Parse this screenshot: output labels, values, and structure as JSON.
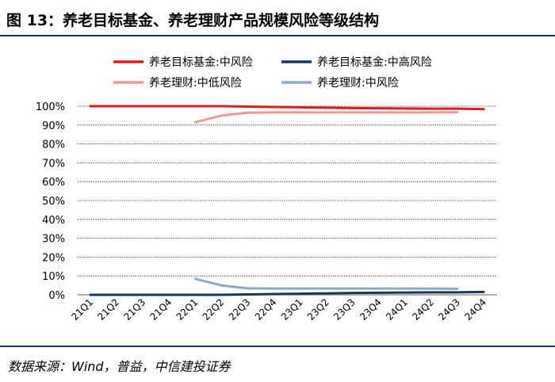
{
  "header": {
    "title": "图 13：养老目标基金、养老理财产品规模风险等级结构"
  },
  "footer": {
    "source": "数据来源：Wind，普益，中信建投证券"
  },
  "colors": {
    "title_rule": "#17375e",
    "grid": "#000000",
    "axis": "#808080"
  },
  "chart_data": {
    "type": "line",
    "title": "",
    "xlabel": "",
    "ylabel": "",
    "ylim": [
      0,
      100
    ],
    "grid": true,
    "legend_position": "top",
    "categories": [
      "21Q1",
      "21Q2",
      "21Q3",
      "21Q4",
      "22Q1",
      "22Q2",
      "22Q3",
      "22Q4",
      "23Q1",
      "23Q2",
      "23Q3",
      "23Q4",
      "24Q1",
      "24Q2",
      "24Q3",
      "24Q4"
    ],
    "y_ticks": [
      "0%",
      "10%",
      "20%",
      "30%",
      "40%",
      "50%",
      "60%",
      "70%",
      "80%",
      "90%",
      "100%"
    ],
    "series": [
      {
        "name": "养老目标基金:中风险",
        "color": "#e31a1c",
        "values": [
          100,
          100,
          100,
          100,
          100,
          100,
          99.8,
          99.6,
          99.4,
          99.2,
          99.0,
          98.9,
          98.8,
          98.7,
          98.7,
          98.5
        ]
      },
      {
        "name": "养老目标基金:中高风险",
        "color": "#17375e",
        "values": [
          0,
          0,
          0,
          0,
          0,
          0,
          0.2,
          0.4,
          0.6,
          0.8,
          1.0,
          1.1,
          1.2,
          1.3,
          1.3,
          1.5
        ]
      },
      {
        "name": "养老理财:中低风险",
        "color": "#f4959a",
        "values": [
          null,
          null,
          null,
          null,
          91.5,
          95.0,
          96.6,
          96.7,
          96.7,
          96.7,
          96.7,
          96.7,
          96.7,
          96.7,
          96.8,
          null
        ]
      },
      {
        "name": "养老理财:中风险",
        "color": "#8eaac6",
        "values": [
          null,
          null,
          null,
          null,
          8.5,
          5.0,
          3.4,
          3.3,
          3.3,
          3.3,
          3.3,
          3.3,
          3.3,
          3.3,
          3.2,
          null
        ]
      }
    ]
  }
}
